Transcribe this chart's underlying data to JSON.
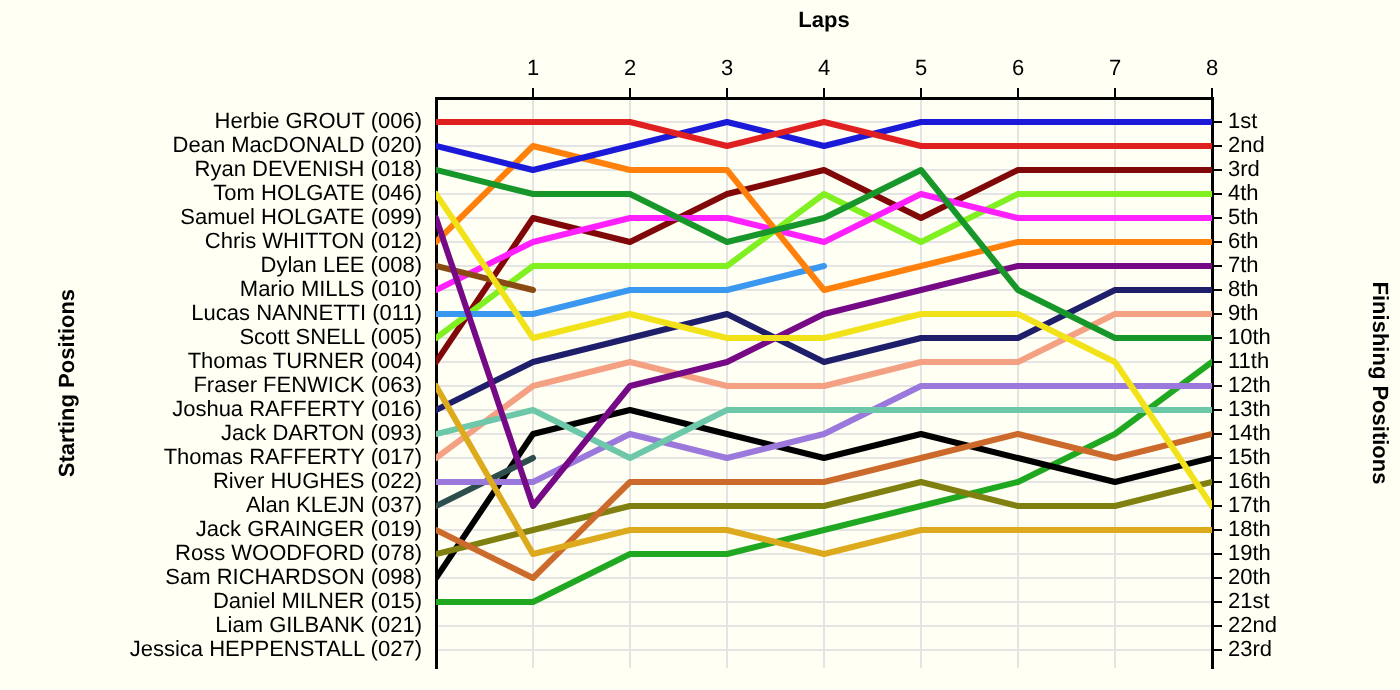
{
  "chart_data": {
    "type": "line",
    "xlabel": "Laps",
    "ylabel": "Finishing Positions",
    "annotations": [
      "Starting Positions",
      "Liam GILBANK (021)",
      "Jessica HEPPENSTALL (027)"
    ],
    "x": [
      0,
      1,
      2,
      3,
      4,
      5,
      6,
      7,
      8
    ],
    "xlim": [
      0,
      8
    ],
    "xticks": [
      1,
      2,
      3,
      4,
      5,
      6,
      7,
      8
    ],
    "ylim": [
      23.75,
      0
    ],
    "yticks": [
      {
        "value": 1,
        "label": "1st"
      },
      {
        "value": 2,
        "label": "2nd"
      },
      {
        "value": 3,
        "label": "3rd"
      },
      {
        "value": 4,
        "label": "4th"
      },
      {
        "value": 5,
        "label": "5th"
      },
      {
        "value": 6,
        "label": "6th"
      },
      {
        "value": 7,
        "label": "7th"
      },
      {
        "value": 8,
        "label": "8th"
      },
      {
        "value": 9,
        "label": "9th"
      },
      {
        "value": 10,
        "label": "10th"
      },
      {
        "value": 11,
        "label": "11th"
      },
      {
        "value": 12,
        "label": "12th"
      },
      {
        "value": 13,
        "label": "13th"
      },
      {
        "value": 14,
        "label": "14th"
      },
      {
        "value": 15,
        "label": "15th"
      },
      {
        "value": 16,
        "label": "16th"
      },
      {
        "value": 17,
        "label": "17th"
      },
      {
        "value": 18,
        "label": "18th"
      },
      {
        "value": 19,
        "label": "19th"
      },
      {
        "value": 20,
        "label": "20th"
      },
      {
        "value": 21,
        "label": "21st"
      },
      {
        "value": 22,
        "label": "22nd"
      },
      {
        "value": 23,
        "label": "23rd"
      }
    ],
    "series": [
      {
        "name": "Herbie GROUT (006)",
        "color": "#e02020",
        "values": [
          1,
          1,
          1,
          2,
          1,
          2,
          2,
          2,
          2
        ]
      },
      {
        "name": "Dean MacDONALD (020)",
        "color": "#1a1ad8",
        "values": [
          2,
          3,
          2,
          1,
          2,
          1,
          1,
          1,
          1
        ]
      },
      {
        "name": "Ryan DEVENISH (018)",
        "color": "#17962a",
        "values": [
          3,
          4,
          4,
          6,
          5,
          3,
          8,
          10,
          10
        ]
      },
      {
        "name": "Tom HOLGATE (046)",
        "color": "#f2e21a",
        "values": [
          4,
          10,
          9,
          10,
          10,
          9,
          9,
          11,
          17
        ]
      },
      {
        "name": "Samuel HOLGATE (099)",
        "color": "#760a86",
        "values": [
          5,
          17,
          12,
          11,
          9,
          8,
          7,
          7,
          7
        ]
      },
      {
        "name": "Chris WHITTON (012)",
        "color": "#ff800a",
        "values": [
          6,
          2,
          3,
          3,
          8,
          7,
          6,
          6,
          6
        ]
      },
      {
        "name": "Dylan LEE (008)",
        "color": "#8a4a14",
        "values": [
          7,
          8,
          null,
          null,
          null,
          null,
          null,
          null,
          null
        ]
      },
      {
        "name": "Mario MILLS (010)",
        "color": "#ff20ff",
        "values": [
          8,
          6,
          5,
          5,
          6,
          4,
          5,
          5,
          5
        ]
      },
      {
        "name": "Lucas NANNETTI (011)",
        "color": "#3a98f0",
        "values": [
          9,
          9,
          8,
          8,
          7,
          null,
          null,
          null,
          null
        ]
      },
      {
        "name": "Scott SNELL (005)",
        "color": "#80f020",
        "values": [
          10,
          7,
          7,
          7,
          4,
          6,
          4,
          4,
          4
        ]
      },
      {
        "name": "Thomas TURNER (004)",
        "color": "#800808",
        "values": [
          11,
          5,
          6,
          4,
          3,
          5,
          3,
          3,
          3
        ]
      },
      {
        "name": "Fraser FENWICK (063)",
        "color": "#dcaa1c",
        "values": [
          12,
          19,
          18,
          18,
          19,
          18,
          18,
          18,
          18
        ]
      },
      {
        "name": "Joshua RAFFERTY (016)",
        "color": "#1e1e6a",
        "values": [
          13,
          11,
          10,
          9,
          11,
          10,
          10,
          8,
          8
        ]
      },
      {
        "name": "Jack DARTON (093)",
        "color": "#6cc8a8",
        "values": [
          14,
          13,
          15,
          13,
          13,
          13,
          13,
          13,
          13
        ]
      },
      {
        "name": "Thomas RAFFERTY (017)",
        "color": "#f4a082",
        "values": [
          15,
          12,
          11,
          12,
          12,
          11,
          11,
          9,
          9
        ]
      },
      {
        "name": "River HUGHES (022)",
        "color": "#9a78dc",
        "values": [
          16,
          16,
          14,
          15,
          14,
          12,
          12,
          12,
          12
        ]
      },
      {
        "name": "Alan KLEJN (037)",
        "color": "#2e4e4e",
        "values": [
          17,
          15,
          null,
          null,
          null,
          null,
          null,
          null,
          null
        ]
      },
      {
        "name": "Jack GRAINGER (019)",
        "color": "#cc6a2c",
        "values": [
          18,
          20,
          16,
          16,
          16,
          15,
          14,
          15,
          14
        ]
      },
      {
        "name": "Ross WOODFORD (078)",
        "color": "#808010",
        "values": [
          19,
          18,
          17,
          17,
          17,
          16,
          17,
          17,
          16
        ]
      },
      {
        "name": "Sam RICHARDSON (098)",
        "color": "#000000",
        "values": [
          20,
          14,
          13,
          14,
          15,
          14,
          15,
          16,
          15
        ]
      },
      {
        "name": "Daniel MILNER (015)",
        "color": "#20a820",
        "values": [
          21,
          21,
          19,
          19,
          18,
          17,
          16,
          14,
          11
        ]
      }
    ],
    "grid": true,
    "legend": false,
    "marker": "none",
    "line_style": "solid"
  }
}
